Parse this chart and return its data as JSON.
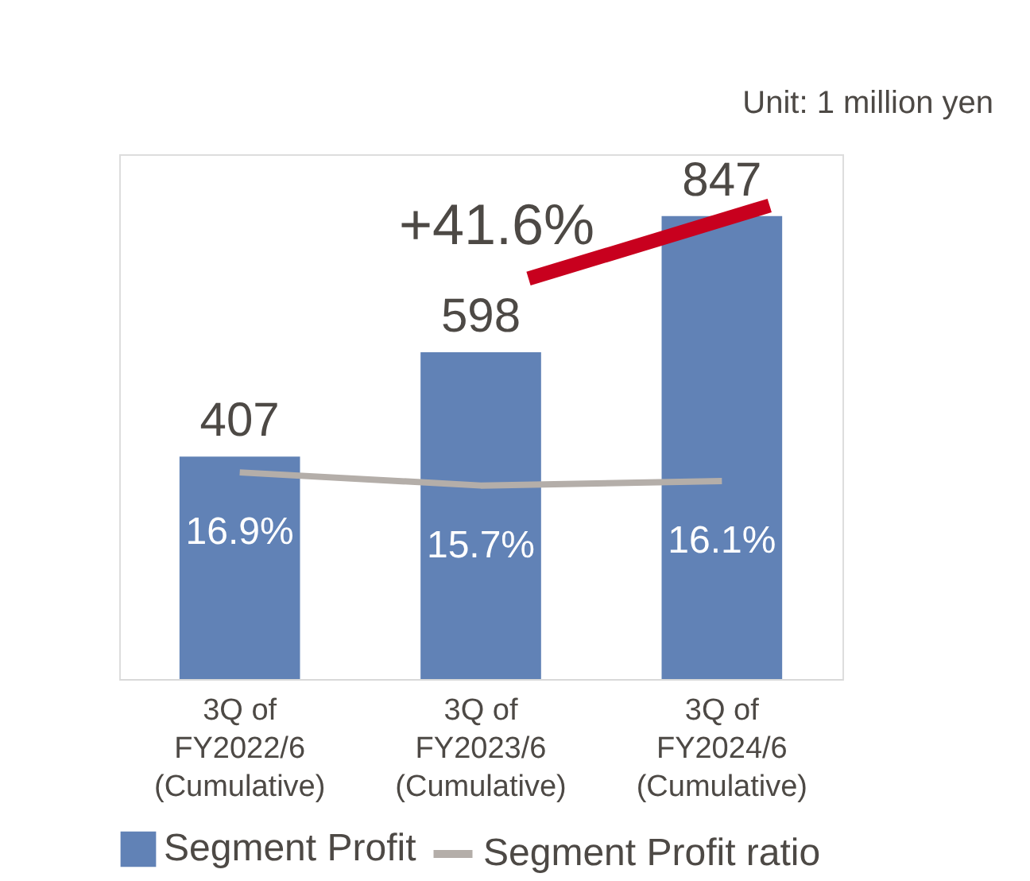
{
  "chart_data": {
    "type": "bar",
    "categories": [
      "3Q of\nFY2022/6\n(Cumulative)",
      "3Q of\nFY2023/6\n(Cumulative)",
      "3Q of\nFY2024/6\n(Cumulative)"
    ],
    "series": [
      {
        "name": "Segment Profit",
        "color": "#6182b6",
        "values": [
          407,
          598,
          847
        ]
      },
      {
        "name": "Segment Profit ratio",
        "type": "line",
        "axis": "y2",
        "color": "#b4aea9",
        "values": [
          16.9,
          15.7,
          16.1
        ],
        "value_labels": [
          "16.9%",
          "15.7%",
          "16.1%"
        ]
      }
    ],
    "data_labels": true,
    "ylim": [
      0,
      960
    ],
    "y2lim": [
      -2,
      46
    ],
    "tick_labels": "x",
    "legend": "bottom",
    "grid": false,
    "annotations": [
      "Unit: 1 million yen",
      "+41.6%"
    ]
  }
}
